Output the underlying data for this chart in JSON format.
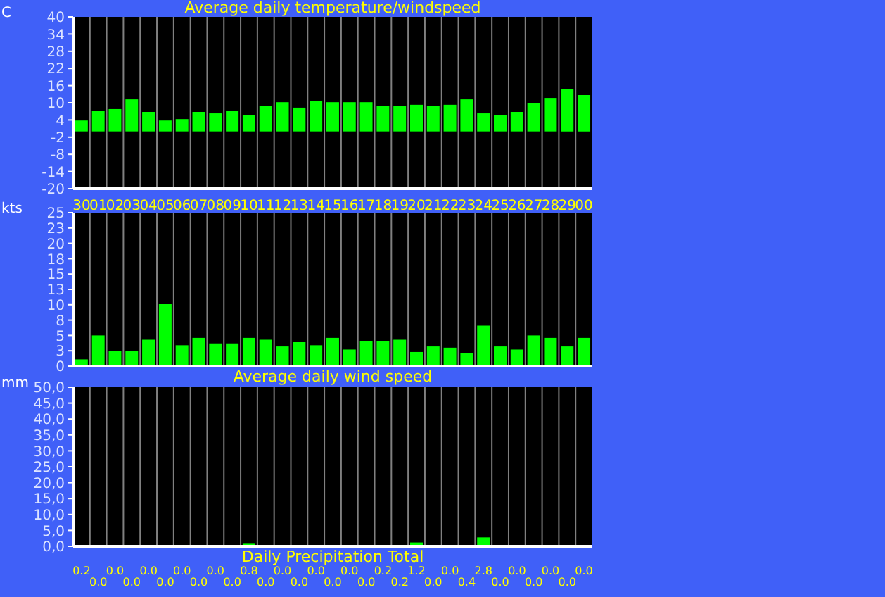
{
  "chart_data": [
    {
      "type": "bar",
      "title": "Average daily temperature/windspeed",
      "ylabel": "C",
      "categories": [
        "30",
        "01",
        "02",
        "03",
        "04",
        "05",
        "06",
        "07",
        "08",
        "09",
        "10",
        "11",
        "12",
        "13",
        "14",
        "15",
        "16",
        "17",
        "18",
        "19",
        "20",
        "21",
        "22",
        "23",
        "24",
        "25",
        "26",
        "27",
        "28",
        "29",
        "00"
      ],
      "values": [
        3.8,
        7.3,
        7.8,
        11.2,
        6.8,
        3.8,
        4.3,
        6.8,
        6.3,
        7.3,
        5.8,
        8.8,
        10.2,
        8.3,
        10.7,
        10.2,
        10.2,
        10.2,
        8.8,
        8.8,
        9.3,
        8.8,
        9.3,
        11.2,
        6.3,
        5.8,
        6.8,
        9.8,
        11.7,
        14.7,
        12.7
      ],
      "color": "#00ff00",
      "ylim": [
        -20,
        40
      ],
      "yticks": [
        -20,
        -14,
        -8,
        -2,
        4,
        10,
        16,
        22,
        28,
        34,
        40
      ],
      "grid": "x"
    },
    {
      "type": "bar",
      "xlabel": "Average daily wind speed",
      "ylabel": "kts",
      "categories": [
        "30",
        "01",
        "02",
        "03",
        "04",
        "05",
        "06",
        "07",
        "08",
        "09",
        "10",
        "11",
        "12",
        "13",
        "14",
        "15",
        "16",
        "17",
        "18",
        "19",
        "20",
        "21",
        "22",
        "23",
        "24",
        "25",
        "26",
        "27",
        "28",
        "29",
        "00"
      ],
      "values": [
        1.1,
        5.0,
        2.5,
        2.5,
        4.3,
        10.1,
        3.4,
        4.6,
        3.7,
        3.7,
        4.6,
        4.3,
        3.2,
        3.9,
        3.4,
        4.6,
        2.7,
        4.1,
        4.1,
        4.3,
        2.3,
        3.2,
        3.0,
        2.1,
        6.6,
        3.2,
        2.7,
        5.0,
        4.6,
        3.2,
        4.6
      ],
      "color": "#00ff00",
      "ylim": [
        0,
        25
      ],
      "yticks": [
        0,
        {
          "value": 2.5,
          "label": "3"
        },
        5,
        {
          "value": 7.5,
          "label": "8"
        },
        10,
        {
          "value": 12.5,
          "label": "13"
        },
        15,
        {
          "value": 17.5,
          "label": "18"
        },
        20,
        {
          "value": 22.5,
          "label": "23"
        },
        25
      ],
      "grid": "x",
      "tick_labels": "y"
    },
    {
      "type": "bar",
      "xlabel": "Daily Precipitation Total",
      "ylabel": "mm",
      "categories": [
        "30",
        "01",
        "02",
        "03",
        "04",
        "05",
        "06",
        "07",
        "08",
        "09",
        "10",
        "11",
        "12",
        "13",
        "14",
        "15",
        "16",
        "17",
        "18",
        "19",
        "20",
        "21",
        "22",
        "23",
        "24",
        "25",
        "26",
        "27",
        "28",
        "29",
        "00"
      ],
      "values": [
        0.2,
        0.0,
        0.0,
        0.0,
        0.0,
        0.0,
        0.0,
        0.0,
        0.0,
        0.0,
        0.8,
        0.0,
        0.0,
        0.0,
        0.0,
        0.0,
        0.0,
        0.0,
        0.2,
        0.2,
        1.2,
        0.0,
        0.0,
        0.4,
        2.8,
        0.0,
        0.0,
        0.0,
        0.0,
        0.0,
        0.0
      ],
      "value_labels": [
        "0.2",
        "0.0",
        "0.0",
        "0.0",
        "0.0",
        "0.0",
        "0.0",
        "0.0",
        "0.0",
        "0.0",
        "0.8",
        "0.0",
        "0.0",
        "0.0",
        "0.0",
        "0.0",
        "0.0",
        "0.0",
        "0.2",
        "0.2",
        "1.2",
        "0.0",
        "0.0",
        "0.4",
        "2.8",
        "0.0",
        "0.0",
        "0.0",
        "0.0",
        "0.0",
        "0.0"
      ],
      "color": "#00ff00",
      "ylim": [
        0,
        50
      ],
      "yticks": [
        {
          "value": 0,
          "label": "0,0"
        },
        {
          "value": 5,
          "label": "5,0"
        },
        {
          "value": 10,
          "label": "10,0"
        },
        {
          "value": 15,
          "label": "15,0"
        },
        {
          "value": 20,
          "label": "20,0"
        },
        {
          "value": 25,
          "label": "25,0"
        },
        {
          "value": 30,
          "label": "30,0"
        },
        {
          "value": 35,
          "label": "35,0"
        },
        {
          "value": 40,
          "label": "40,0"
        },
        {
          "value": 45,
          "label": "45,0"
        },
        {
          "value": 50,
          "label": "50,0"
        }
      ],
      "grid": "x",
      "tick_labels": "y"
    }
  ]
}
